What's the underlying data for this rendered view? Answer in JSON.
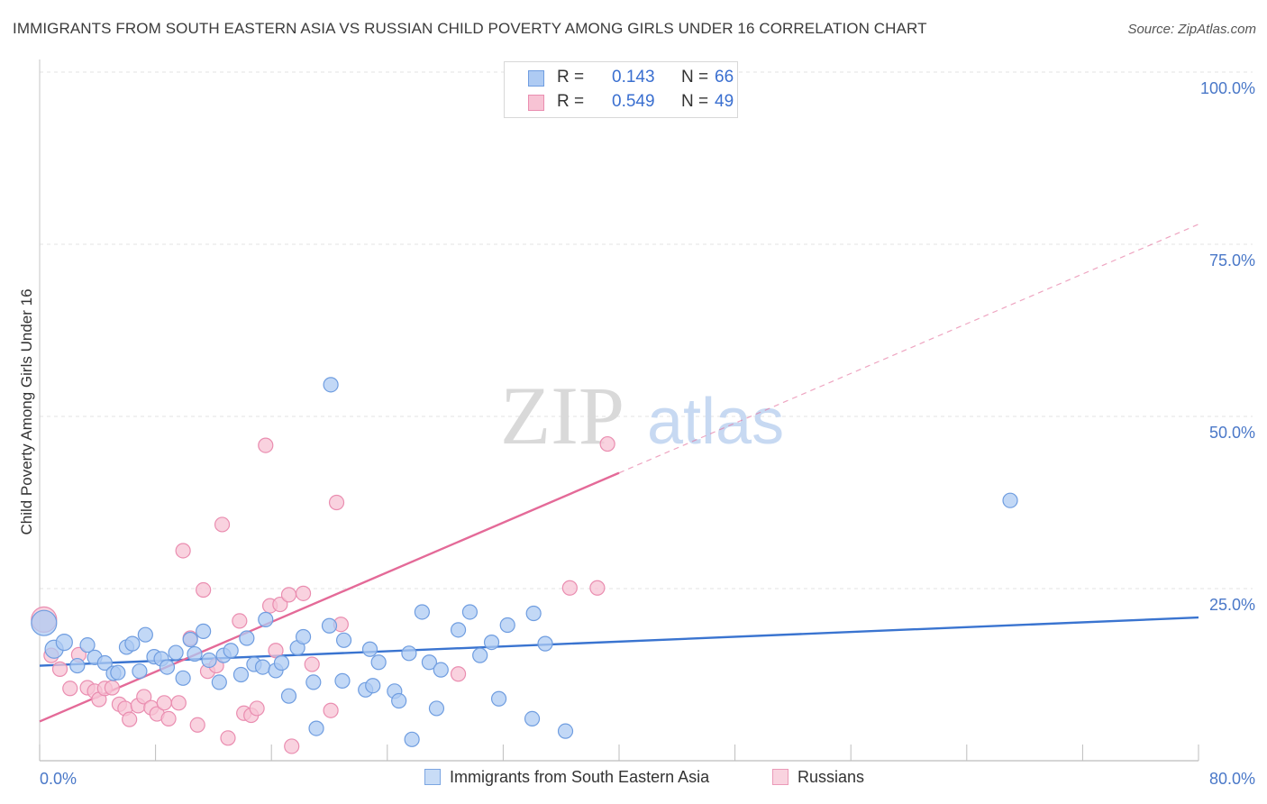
{
  "title": "IMMIGRANTS FROM SOUTH EASTERN ASIA VS RUSSIAN CHILD POVERTY AMONG GIRLS UNDER 16 CORRELATION CHART",
  "source": "Source: ZipAtlas.com",
  "watermark": {
    "zip": "ZIP",
    "atlas": "atlas"
  },
  "legend": {
    "r_label": "R =",
    "n_label": "N =",
    "series": [
      {
        "name": "Immigrants from South Eastern Asia",
        "r": "0.143",
        "n": "66",
        "fill": "#aecbf3",
        "stroke": "#6f9de0"
      },
      {
        "name": "Russians",
        "r": "0.549",
        "n": "49",
        "fill": "#f7c3d4",
        "stroke": "#ea8db0"
      }
    ]
  },
  "chart_data": {
    "type": "scatter",
    "title": "IMMIGRANTS FROM SOUTH EASTERN ASIA VS RUSSIAN CHILD POVERTY AMONG GIRLS UNDER 16 CORRELATION CHART",
    "xlabel": "",
    "ylabel": "Child Poverty Among Girls Under 16",
    "xlim": [
      0,
      80
    ],
    "ylim": [
      0,
      100
    ],
    "x_tick_labels": [
      "0.0%",
      "80.0%"
    ],
    "y_tick_labels": [
      "25.0%",
      "50.0%",
      "75.0%",
      "100.0%"
    ],
    "y_ticks": [
      25,
      50,
      75,
      100
    ],
    "grid": true,
    "legend_position": "top-center",
    "colors": {
      "blue": "#3a74d0",
      "pink": "#e46a98",
      "blue_fill": "#aecbf3",
      "pink_fill": "#f7c3d4"
    },
    "series": [
      {
        "name": "Immigrants from South Eastern Asia",
        "color": "#3a74d0",
        "trend": {
          "x": [
            0,
            80
          ],
          "y": [
            13.8,
            20.8
          ],
          "solid_to": 80
        },
        "points": [
          [
            0.3,
            20.0,
            14
          ],
          [
            1.0,
            16.2,
            10
          ],
          [
            1.7,
            17.2,
            9
          ],
          [
            2.6,
            13.8,
            8
          ],
          [
            3.3,
            16.8,
            8
          ],
          [
            3.8,
            15.0,
            8
          ],
          [
            4.5,
            14.2,
            8
          ],
          [
            5.1,
            12.7,
            8
          ],
          [
            5.4,
            12.8,
            8
          ],
          [
            6.0,
            16.5,
            8
          ],
          [
            6.4,
            17.0,
            8
          ],
          [
            6.9,
            13.0,
            8
          ],
          [
            7.3,
            18.3,
            8
          ],
          [
            7.9,
            15.1,
            8
          ],
          [
            8.4,
            14.8,
            8
          ],
          [
            8.8,
            13.6,
            8
          ],
          [
            9.4,
            15.7,
            8
          ],
          [
            9.9,
            12.0,
            8
          ],
          [
            10.4,
            17.6,
            8
          ],
          [
            10.7,
            15.5,
            8
          ],
          [
            11.3,
            18.8,
            8
          ],
          [
            11.7,
            14.6,
            8
          ],
          [
            12.4,
            11.4,
            8
          ],
          [
            12.7,
            15.3,
            8
          ],
          [
            13.2,
            16.0,
            8
          ],
          [
            13.9,
            12.5,
            8
          ],
          [
            14.3,
            17.8,
            8
          ],
          [
            14.8,
            14.0,
            8
          ],
          [
            15.4,
            13.6,
            8
          ],
          [
            15.6,
            20.5,
            8
          ],
          [
            16.3,
            13.1,
            8
          ],
          [
            16.7,
            14.2,
            8
          ],
          [
            17.2,
            9.4,
            8
          ],
          [
            17.8,
            16.4,
            8
          ],
          [
            18.2,
            18.0,
            8
          ],
          [
            18.9,
            11.4,
            8
          ],
          [
            19.1,
            4.7,
            8
          ],
          [
            20.0,
            19.6,
            8
          ],
          [
            20.1,
            54.6,
            8
          ],
          [
            20.9,
            11.6,
            8
          ],
          [
            21.0,
            17.5,
            8
          ],
          [
            22.5,
            10.3,
            8
          ],
          [
            22.8,
            16.2,
            8
          ],
          [
            23.0,
            10.9,
            8
          ],
          [
            23.4,
            14.3,
            8
          ],
          [
            24.5,
            10.1,
            8
          ],
          [
            24.8,
            8.7,
            8
          ],
          [
            25.5,
            15.6,
            8
          ],
          [
            25.7,
            3.1,
            8
          ],
          [
            26.4,
            21.6,
            8
          ],
          [
            26.9,
            14.3,
            8
          ],
          [
            27.4,
            7.6,
            8
          ],
          [
            27.7,
            13.2,
            8
          ],
          [
            28.9,
            19.0,
            8
          ],
          [
            29.7,
            21.6,
            8
          ],
          [
            30.4,
            15.3,
            8
          ],
          [
            31.2,
            17.2,
            8
          ],
          [
            31.7,
            9.0,
            8
          ],
          [
            32.3,
            19.7,
            8
          ],
          [
            34.0,
            6.1,
            8
          ],
          [
            34.1,
            21.4,
            8
          ],
          [
            34.9,
            17.0,
            8
          ],
          [
            36.3,
            4.3,
            8
          ],
          [
            67.0,
            37.8,
            8
          ]
        ]
      },
      {
        "name": "Russians",
        "color": "#e46a98",
        "trend": {
          "x": [
            0,
            80
          ],
          "y": [
            5.7,
            77.9
          ],
          "solid_to": 40
        },
        "points": [
          [
            0.3,
            20.5,
            14
          ],
          [
            0.8,
            15.3,
            8
          ],
          [
            1.4,
            13.3,
            8
          ],
          [
            2.1,
            10.5,
            8
          ],
          [
            2.7,
            15.4,
            8
          ],
          [
            3.3,
            10.6,
            8
          ],
          [
            3.8,
            10.1,
            8
          ],
          [
            4.1,
            8.9,
            8
          ],
          [
            4.5,
            10.5,
            8
          ],
          [
            5.0,
            10.6,
            8
          ],
          [
            5.5,
            8.2,
            8
          ],
          [
            5.9,
            7.6,
            8
          ],
          [
            6.2,
            6.0,
            8
          ],
          [
            6.8,
            8.0,
            8
          ],
          [
            7.2,
            9.3,
            8
          ],
          [
            7.7,
            7.7,
            8
          ],
          [
            8.1,
            6.8,
            8
          ],
          [
            8.6,
            8.4,
            8
          ],
          [
            8.9,
            6.1,
            8
          ],
          [
            9.6,
            8.4,
            8
          ],
          [
            9.9,
            30.5,
            8
          ],
          [
            10.4,
            17.8,
            8
          ],
          [
            10.9,
            5.2,
            8
          ],
          [
            11.3,
            24.8,
            8
          ],
          [
            11.6,
            13.0,
            8
          ],
          [
            12.2,
            13.8,
            8
          ],
          [
            12.6,
            34.3,
            8
          ],
          [
            13.0,
            3.3,
            8
          ],
          [
            13.8,
            20.3,
            8
          ],
          [
            14.1,
            6.9,
            8
          ],
          [
            14.6,
            6.6,
            8
          ],
          [
            15.0,
            7.6,
            8
          ],
          [
            15.6,
            45.8,
            8
          ],
          [
            15.9,
            22.5,
            8
          ],
          [
            16.3,
            16.0,
            8
          ],
          [
            16.6,
            22.7,
            8
          ],
          [
            17.2,
            24.1,
            8
          ],
          [
            17.4,
            2.1,
            8
          ],
          [
            18.2,
            24.3,
            8
          ],
          [
            18.8,
            14.0,
            8
          ],
          [
            20.1,
            7.3,
            8
          ],
          [
            20.5,
            37.5,
            8
          ],
          [
            20.8,
            19.8,
            8
          ],
          [
            28.9,
            12.6,
            8
          ],
          [
            36.6,
            25.1,
            8
          ],
          [
            38.5,
            25.1,
            8
          ],
          [
            39.2,
            46.0,
            8
          ]
        ]
      }
    ]
  }
}
